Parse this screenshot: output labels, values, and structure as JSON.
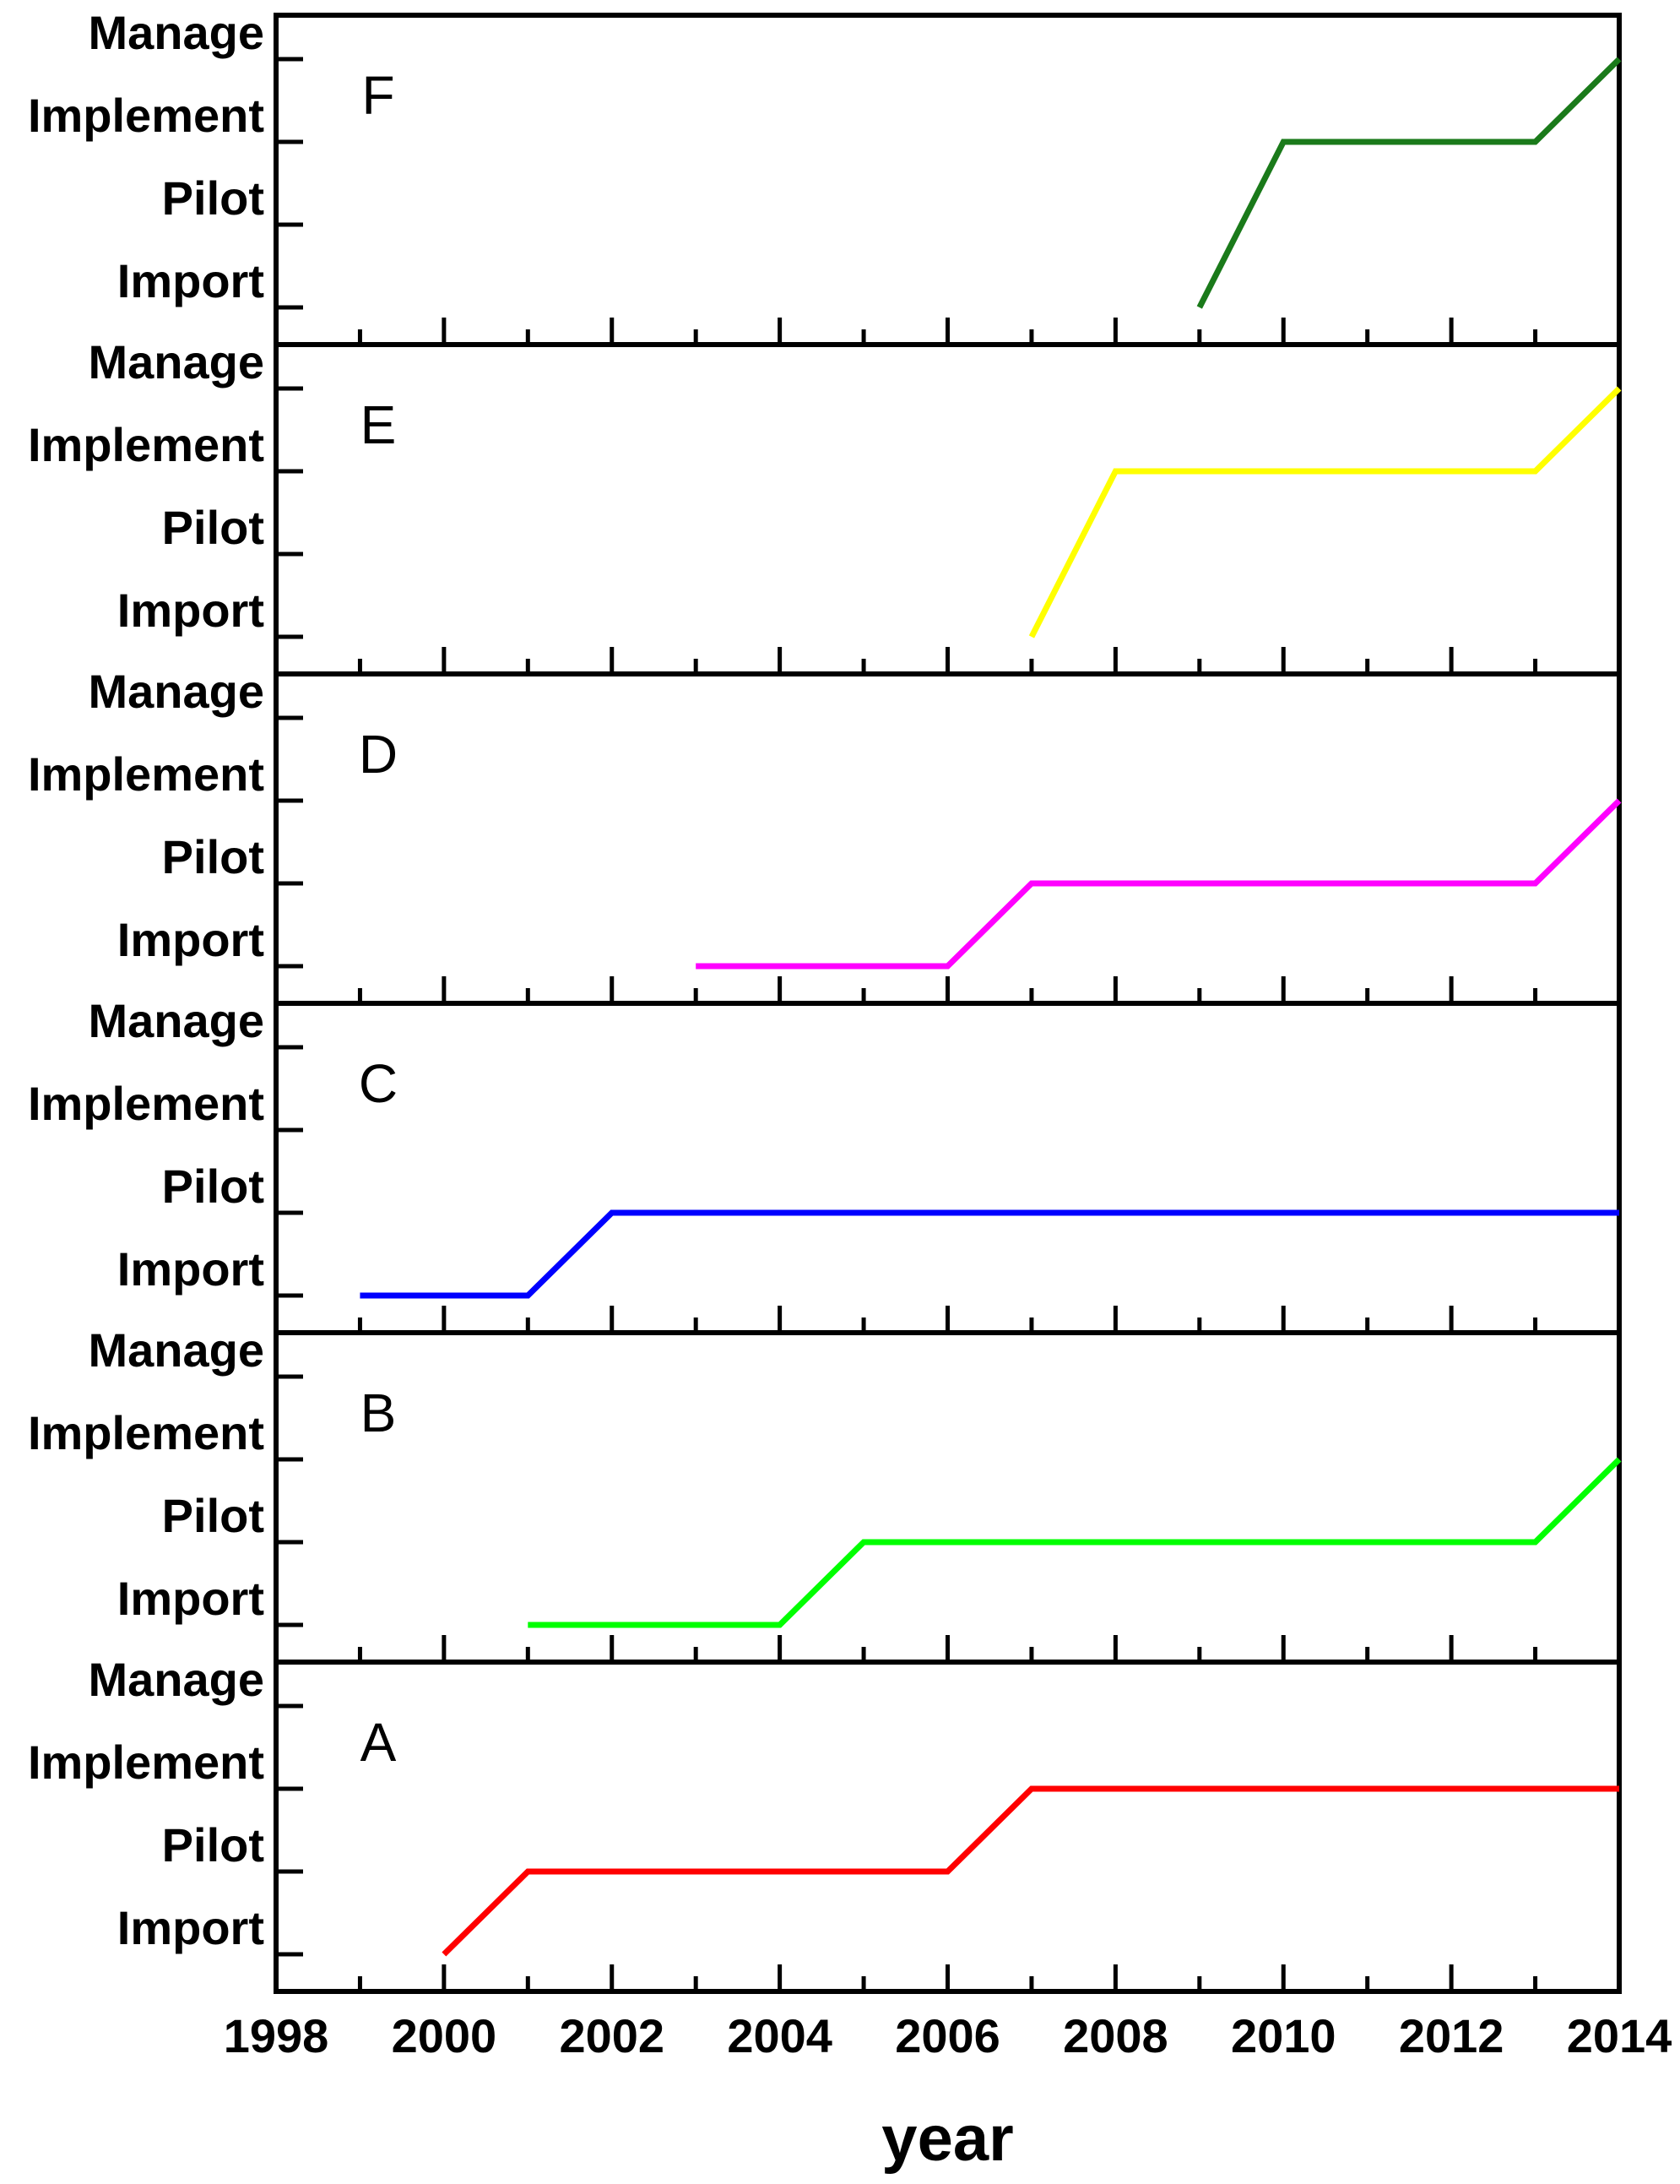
{
  "chart_data": {
    "type": "line",
    "xlabel": "year",
    "xlim": [
      1998,
      2014
    ],
    "x_ticks": [
      "1998",
      "2000",
      "2002",
      "2004",
      "2006",
      "2008",
      "2010",
      "2012",
      "2014"
    ],
    "y_levels": [
      "Import",
      "Pilot",
      "Implement",
      "Manage"
    ],
    "panels": [
      {
        "label": "F",
        "color": "#1a7a1a",
        "points": [
          [
            2009,
            1
          ],
          [
            2010,
            3
          ],
          [
            2013,
            3
          ],
          [
            2014,
            4
          ]
        ]
      },
      {
        "label": "E",
        "color": "#ffff00",
        "points": [
          [
            2007,
            1
          ],
          [
            2008,
            3
          ],
          [
            2013,
            3
          ],
          [
            2014,
            4
          ]
        ]
      },
      {
        "label": "D",
        "color": "#ff00ff",
        "points": [
          [
            2003,
            1
          ],
          [
            2006,
            1
          ],
          [
            2007,
            2
          ],
          [
            2013,
            2
          ],
          [
            2014,
            3
          ]
        ]
      },
      {
        "label": "C",
        "color": "#0000ff",
        "points": [
          [
            1999,
            1
          ],
          [
            2001,
            1
          ],
          [
            2002,
            2
          ],
          [
            2014,
            2
          ]
        ]
      },
      {
        "label": "B",
        "color": "#00ff00",
        "points": [
          [
            2001,
            1
          ],
          [
            2004,
            1
          ],
          [
            2005,
            2
          ],
          [
            2013,
            2
          ],
          [
            2014,
            3
          ]
        ]
      },
      {
        "label": "A",
        "color": "#ff0000",
        "points": [
          [
            2000,
            1
          ],
          [
            2001,
            2
          ],
          [
            2006,
            2
          ],
          [
            2007,
            3
          ],
          [
            2014,
            3
          ]
        ]
      }
    ]
  }
}
